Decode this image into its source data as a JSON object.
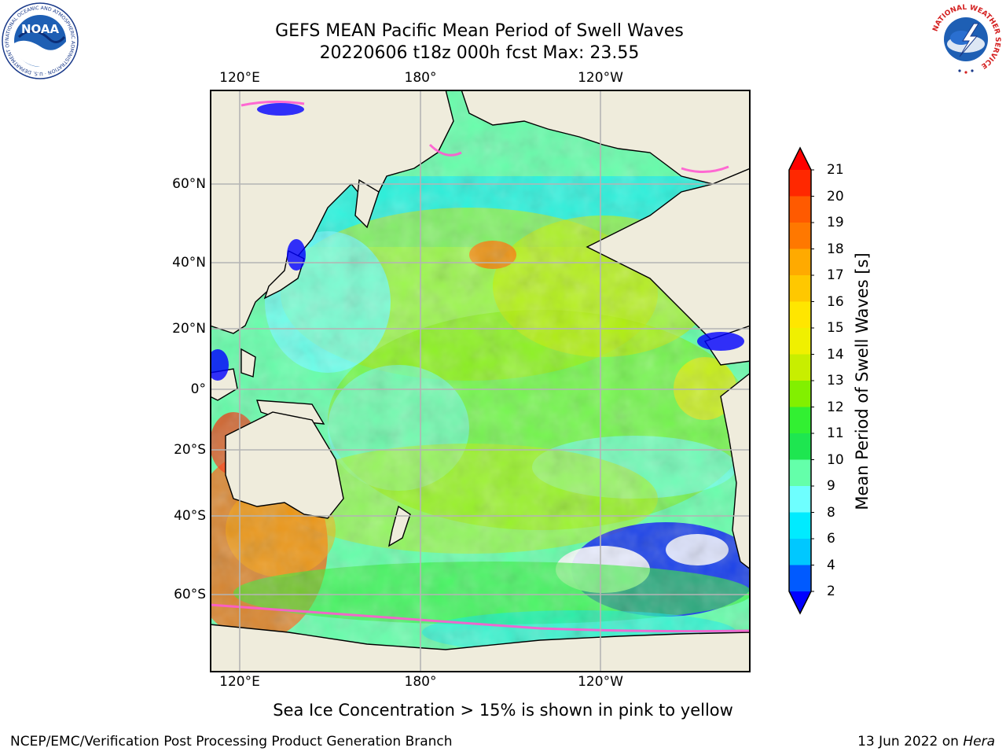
{
  "header": {
    "title_line1": "GEFS MEAN Pacific Mean Period of Swell Waves",
    "title_line2": "20220606 t18z 000h fcst   Max: 23.55"
  },
  "logos": {
    "noaa": {
      "text": "NOAA",
      "ring_text": "NATIONAL OCEANIC AND ATMOSPHERIC ADMINISTRATION · U.S. DEPARTMENT OF COMMERCE"
    },
    "nws": {
      "ring_text": "NATIONAL WEATHER SERVICE"
    }
  },
  "map": {
    "lon_labels": [
      "120°E",
      "180°",
      "120°W"
    ],
    "lat_labels": [
      "60°N",
      "40°N",
      "20°N",
      "0°",
      "20°S",
      "40°S",
      "60°S"
    ],
    "colors": {
      "land": "#efecdc",
      "frame": "#000000",
      "grid": "#b4b4b4"
    }
  },
  "colorbar": {
    "label": "Mean Period of Swell Waves [s]",
    "ticks": [
      "2",
      "4",
      "6",
      "8",
      "9",
      "10",
      "11",
      "12",
      "13",
      "14",
      "15",
      "16",
      "17",
      "18",
      "19",
      "20",
      "21"
    ],
    "colors": [
      "#0000ff",
      "#005aff",
      "#00c8ff",
      "#00ebff",
      "#6effff",
      "#64ffaa",
      "#1ee650",
      "#32f032",
      "#82f000",
      "#c8ee00",
      "#f0f000",
      "#ffe600",
      "#ffc800",
      "#ffaa00",
      "#ff7800",
      "#ff5a00",
      "#ff2800",
      "#ff0000"
    ]
  },
  "footer": {
    "note": "Sea Ice Concentration > 15% is shown in pink to yellow",
    "left": "NCEP/EMC/Verification Post Processing Product Generation Branch",
    "right_prefix": "13 Jun 2022 on ",
    "right_host": "Hera"
  }
}
